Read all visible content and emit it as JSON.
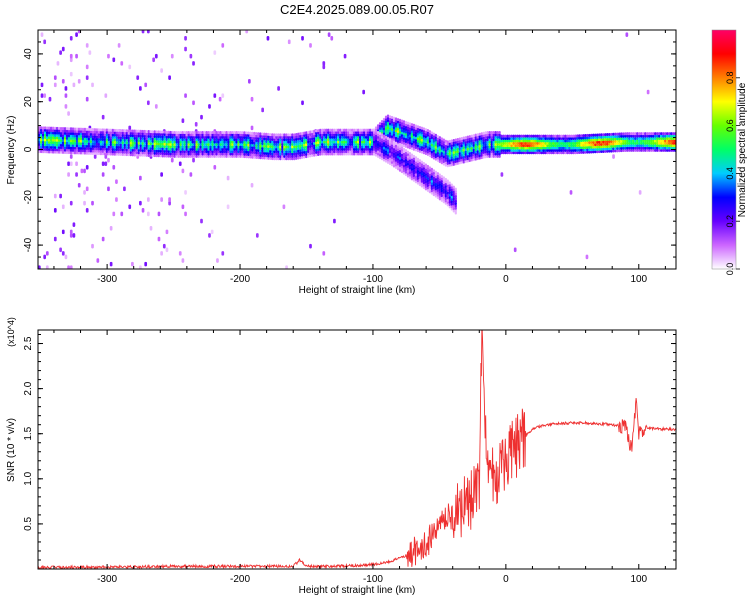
{
  "title": "C2E4.2025.089.00.05.R07",
  "chart_data": [
    {
      "type": "heatmap",
      "xlabel": "Height of straight line (km)",
      "ylabel": "Frequency (Hz)",
      "xlim": [
        -352,
        128
      ],
      "ylim": [
        -50,
        50
      ],
      "xticks": [
        -300,
        -200,
        -100,
        0,
        100
      ],
      "yticks": [
        -40,
        -20,
        0,
        20,
        40
      ],
      "colorbar": {
        "label": "Normalized spectral amplitude",
        "range": [
          0,
          1
        ],
        "ticks": [
          "0.0",
          "0.2",
          "0.4",
          "0.6",
          "0.8"
        ],
        "tick_values": [
          0,
          0.2,
          0.4,
          0.6,
          0.8
        ],
        "colors": [
          "#ffffff",
          "#cc66ff",
          "#6600ff",
          "#0000ff",
          "#00ccff",
          "#00ff66",
          "#66ff00",
          "#ffff00",
          "#ff8000",
          "#ff0000",
          "#ff0066"
        ]
      },
      "main_trace": [
        [
          -352,
          4
        ],
        [
          -300,
          3
        ],
        [
          -250,
          2
        ],
        [
          -200,
          2
        ],
        [
          -175,
          1
        ],
        [
          -160,
          1
        ],
        [
          -140,
          3
        ],
        [
          -120,
          3
        ],
        [
          -100,
          3
        ],
        [
          -90,
          9
        ],
        [
          -75,
          6
        ],
        [
          -60,
          3
        ],
        [
          -45,
          -2
        ],
        [
          -30,
          0
        ],
        [
          -15,
          2
        ],
        [
          0,
          2
        ],
        [
          50,
          2
        ],
        [
          90,
          3
        ],
        [
          128,
          3
        ]
      ],
      "lower_branch": [
        [
          -100,
          3
        ],
        [
          -85,
          -2
        ],
        [
          -70,
          -8
        ],
        [
          -55,
          -14
        ],
        [
          -45,
          -18
        ],
        [
          -38,
          -22
        ]
      ]
    },
    {
      "type": "line",
      "xlabel": "Height of straight line (km)",
      "ylabel": "SNR (10 * v/v)",
      "y_multiplier": "(x10^4)",
      "xlim": [
        -352,
        128
      ],
      "ylim": [
        0,
        2.65
      ],
      "xticks": [
        -300,
        -200,
        -100,
        0,
        100
      ],
      "yticks": [
        0.5,
        1.0,
        1.5,
        2.0,
        2.5
      ],
      "ytick_labels": [
        "0.5",
        "1.0",
        "1.5",
        "2.0",
        "2.5"
      ],
      "color": "#ee3030",
      "series": [
        {
          "x": [
            -352,
            -300,
            -250,
            -200,
            -160,
            -155,
            -150,
            -130,
            -110,
            -100,
            -90,
            -80,
            -70,
            -60,
            -50,
            -40,
            -30,
            -20,
            -18,
            -15,
            -10,
            -5,
            0,
            10,
            20,
            30,
            40,
            50,
            60,
            70,
            80,
            90,
            95,
            98,
            100,
            105,
            110,
            120,
            128
          ],
          "y": [
            0.02,
            0.02,
            0.03,
            0.03,
            0.03,
            0.1,
            0.03,
            0.03,
            0.04,
            0.05,
            0.07,
            0.12,
            0.18,
            0.28,
            0.45,
            0.6,
            0.7,
            0.9,
            2.65,
            1.3,
            1.0,
            1.1,
            1.2,
            1.4,
            1.55,
            1.6,
            1.61,
            1.62,
            1.62,
            1.61,
            1.6,
            1.58,
            1.3,
            1.9,
            1.5,
            1.58,
            1.56,
            1.55,
            1.55
          ]
        }
      ]
    }
  ]
}
